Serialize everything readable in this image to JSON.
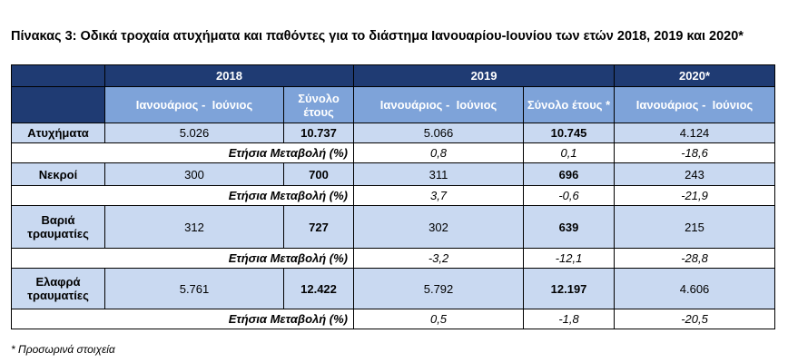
{
  "caption": "Πίνακας 3: Οδικά τροχαία ατυχήματα και παθόντες για το διάστημα Ιανουαρίου-Ιουνίου των ετών 2018, 2019 και 2020*",
  "years": [
    "2018",
    "2019",
    "2020*"
  ],
  "subheaders": {
    "period_2018": "Ιανουάριος -  Ιούνιος",
    "total_2018": "Σύνολο έτους",
    "period_2019": "Ιανουάριος -  Ιούνιος",
    "total_2019": "Σύνολο έτους *",
    "period_2020": "Ιανουάριος -  Ιούνιος"
  },
  "change_label": "Ετήσια Μεταβολή (%)",
  "rows": [
    {
      "label": "Ατυχήματα",
      "v2018": "5.026",
      "t2018": "10.737",
      "v2019": "5.066",
      "t2019": "10.745",
      "v2020": "4.124",
      "change": {
        "p2019": "0,8",
        "t2019": "0,1",
        "p2020": "-18,6"
      }
    },
    {
      "label": "Νεκροί",
      "v2018": "300",
      "t2018": "700",
      "v2019": "311",
      "t2019": "696",
      "v2020": "243",
      "change": {
        "p2019": "3,7",
        "t2019": "-0,6",
        "p2020": "-21,9"
      }
    },
    {
      "label": "Βαριά τραυματίες",
      "v2018": "312",
      "t2018": "727",
      "v2019": "302",
      "t2019": "639",
      "v2020": "215",
      "change": {
        "p2019": "-3,2",
        "t2019": "-12,1",
        "p2020": "-28,8"
      }
    },
    {
      "label": "Ελαφρά τραυματίες",
      "v2018": "5.761",
      "t2018": "12.422",
      "v2019": "5.792",
      "t2019": "12.197",
      "v2020": "4.606",
      "change": {
        "p2019": "0,5",
        "t2019": "-1,8",
        "p2020": "-20,5"
      }
    }
  ],
  "footnote": "* Προσωρινά στοιχεία"
}
